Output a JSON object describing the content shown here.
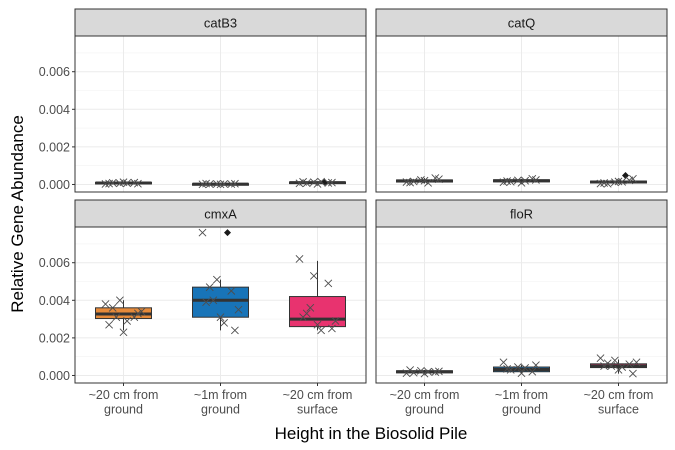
{
  "chart_data": {
    "type": "box",
    "xlabel": "Height in the Biosolid Pile",
    "ylabel": "Relative Gene Abundance",
    "categories": [
      [
        "~20 cm from",
        "ground"
      ],
      [
        "~1m from",
        "ground"
      ],
      [
        "~20 cm from",
        "surface"
      ]
    ],
    "y_ticks": [
      "0.000",
      "0.002",
      "0.004",
      "0.006"
    ],
    "ylim": [
      -0.0004,
      0.0079
    ],
    "grid": true,
    "facets": [
      {
        "name": "catB3",
        "boxes": [
          {
            "category_index": 0,
            "q1": 5e-05,
            "median": 8e-05,
            "q3": 0.00011,
            "whisker_low": 2e-05,
            "whisker_high": 0.00014,
            "outliers": [],
            "fill": "#333333",
            "points": [
              3e-05,
              6e-05,
              0.0001,
              5e-05,
              0.00012,
              4e-05,
              9e-05,
              7e-05
            ]
          },
          {
            "category_index": 1,
            "q1": 1e-05,
            "median": 2e-05,
            "q3": 4e-05,
            "whisker_low": 0.0,
            "whisker_high": 6e-05,
            "outliers": [],
            "fill": "#333333",
            "points": [
              1e-05,
              3e-05,
              2e-05,
              5e-05,
              1e-05,
              4e-05,
              2e-05,
              3e-05
            ]
          },
          {
            "category_index": 2,
            "q1": 5e-05,
            "median": 0.0001,
            "q3": 0.00013,
            "whisker_low": 2e-05,
            "whisker_high": 0.00016,
            "outliers": [
              0.00011
            ],
            "fill": "#333333",
            "points": [
              6e-05,
              0.00012,
              8e-05,
              0.00014,
              3e-05,
              0.0001,
              7e-05,
              0.00015
            ]
          }
        ]
      },
      {
        "name": "catQ",
        "boxes": [
          {
            "category_index": 0,
            "q1": 0.00013,
            "median": 0.00019,
            "q3": 0.00024,
            "whisker_low": 6e-05,
            "whisker_high": 0.00034,
            "outliers": [],
            "fill": "#333333",
            "points": [
              0.00013,
              0.00024,
              0.00034,
              0.0001,
              0.0002,
              0.00028,
              0.00016,
              9e-05
            ]
          },
          {
            "category_index": 1,
            "q1": 0.00014,
            "median": 0.0002,
            "q3": 0.00025,
            "whisker_low": 8e-05,
            "whisker_high": 0.0003,
            "outliers": [],
            "fill": "#333333",
            "points": [
              0.00012,
              0.00022,
              0.0003,
              0.00018,
              9e-05,
              0.00024,
              0.00015,
              0.0002
            ]
          },
          {
            "category_index": 2,
            "q1": 8e-05,
            "median": 0.00013,
            "q3": 0.00018,
            "whisker_low": 3e-05,
            "whisker_high": 0.00025,
            "outliers": [
              0.00048
            ],
            "fill": "#333333",
            "points": [
              5e-05,
              0.00012,
              0.00022,
              8e-05,
              0.00016,
              0.0003,
              4e-05,
              0.00014
            ]
          }
        ]
      },
      {
        "name": "cmxA",
        "boxes": [
          {
            "category_index": 0,
            "q1": 0.00303,
            "median": 0.00327,
            "q3": 0.0036,
            "whisker_low": 0.0024,
            "whisker_high": 0.004,
            "outliers": [],
            "fill": "#E68A3A",
            "points": [
              0.0038,
              0.004,
              0.0031,
              0.0027,
              0.0023,
              0.0033,
              0.0036,
              0.0029,
              0.0034,
              0.0031
            ]
          },
          {
            "category_index": 1,
            "q1": 0.0031,
            "median": 0.004,
            "q3": 0.0047,
            "whisker_low": 0.0024,
            "whisker_high": 0.0051,
            "outliers": [
              0.0076
            ],
            "fill": "#1874B8",
            "points": [
              0.0076,
              0.0051,
              0.0045,
              0.0039,
              0.0031,
              0.0024,
              0.0047,
              0.0028,
              0.0035,
              0.004
            ]
          },
          {
            "category_index": 2,
            "q1": 0.0026,
            "median": 0.003,
            "q3": 0.0042,
            "whisker_low": 0.0024,
            "whisker_high": 0.0061,
            "outliers": [],
            "fill": "#E8336F",
            "points": [
              0.0062,
              0.0053,
              0.0049,
              0.0031,
              0.0027,
              0.0025,
              0.0033,
              0.0024,
              0.0029,
              0.0036
            ]
          }
        ]
      },
      {
        "name": "floR",
        "boxes": [
          {
            "category_index": 0,
            "q1": 0.00014,
            "median": 0.0002,
            "q3": 0.00025,
            "whisker_low": 0.0001,
            "whisker_high": 0.00029,
            "outliers": [],
            "fill": "#333333",
            "points": [
              0.00012,
              0.00025,
              0.00018,
              0.00029,
              0.0001,
              0.00022,
              0.00015,
              0.0002
            ]
          },
          {
            "category_index": 1,
            "q1": 0.0002,
            "median": 0.00032,
            "q3": 0.00045,
            "whisker_low": 0.0001,
            "whisker_high": 0.00055,
            "outliers": [],
            "fill": "#1874B8",
            "points": [
              0.0007,
              0.00045,
              0.0002,
              0.00035,
              0.00012,
              0.00055,
              0.0003,
              0.0004
            ]
          },
          {
            "category_index": 2,
            "q1": 0.00042,
            "median": 0.0005,
            "q3": 0.00062,
            "whisker_low": 0.0001,
            "whisker_high": 0.00085,
            "outliers": [],
            "fill": "#E8336F",
            "points": [
              0.00092,
              0.0008,
              0.0006,
              0.0005,
              0.0003,
              0.0001,
              0.00065,
              0.00045,
              0.0007,
              0.0005
            ]
          }
        ]
      }
    ]
  }
}
